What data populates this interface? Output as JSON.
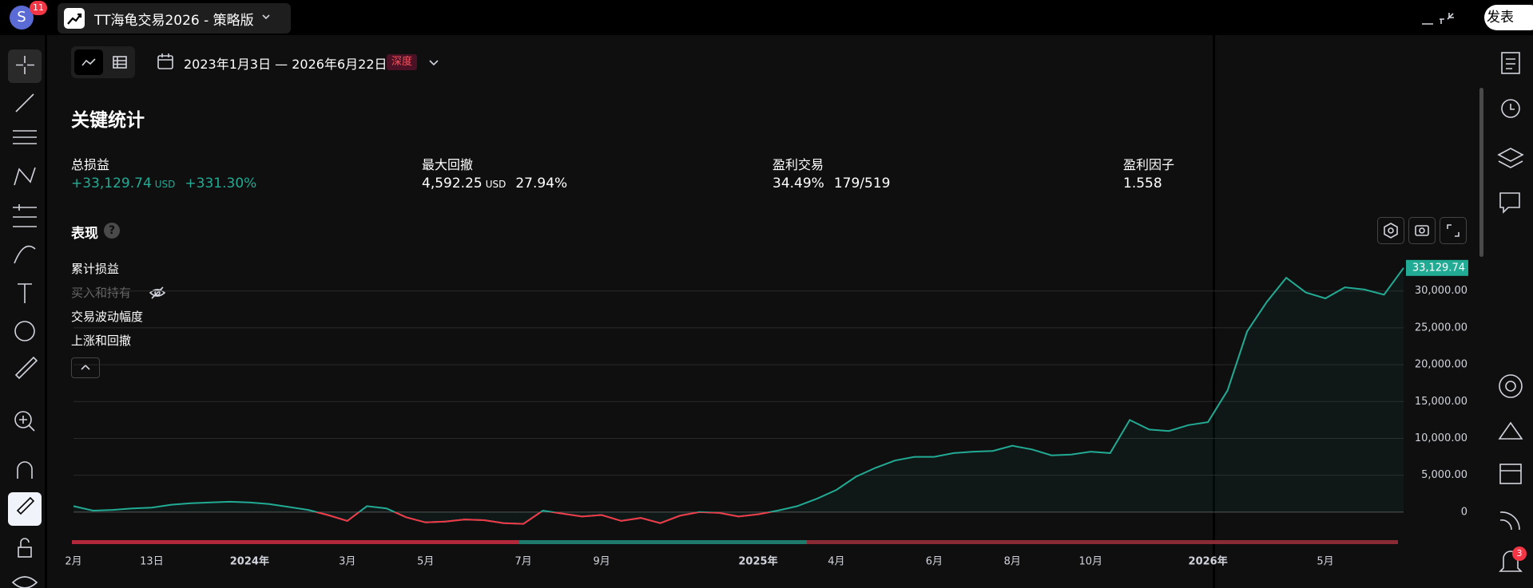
{
  "top_bar": {
    "avatar": "S",
    "notifications": "11",
    "tab_title": "TT海龟交易2026 - 策略版",
    "publish": "发表"
  },
  "toolbar": {
    "date_range": "2023年1月3日 — 2026年6月22日",
    "depth_badge": "深度"
  },
  "key_stats": {
    "title": "关键统计",
    "items": [
      {
        "label": "总损益",
        "value": "+33,129.74",
        "unit": "USD",
        "percent": "+331.30%"
      },
      {
        "label": "最大回撤",
        "value": "4,592.25",
        "unit": "USD",
        "percent": "27.94%"
      },
      {
        "label": "盈利交易",
        "value": "34.49%",
        "ratio": "179/519"
      },
      {
        "label": "盈利因子",
        "value": "1.558"
      }
    ]
  },
  "performance": {
    "title": "表现",
    "help": "?",
    "legend": [
      "累计损益",
      "买入和持有",
      "交易波动幅度",
      "上涨和回撤"
    ]
  },
  "alerts_badge": "3",
  "chart_data": {
    "type": "line",
    "color": "#22ab94",
    "negative_color": "#f23645",
    "categories": [
      "2月",
      null,
      null,
      null,
      "13日",
      null,
      null,
      null,
      null,
      "2024年",
      null,
      null,
      null,
      null,
      "3月",
      null,
      null,
      null,
      "5月",
      null,
      null,
      null,
      null,
      "7月",
      null,
      null,
      null,
      "9月",
      null,
      null,
      null,
      null,
      null,
      null,
      null,
      "2025年",
      null,
      null,
      null,
      "4月",
      null,
      null,
      null,
      null,
      "6月",
      null,
      null,
      null,
      "8月",
      null,
      null,
      null,
      "10月",
      null,
      null,
      null,
      null,
      null,
      "2026年",
      null,
      null,
      null,
      null,
      null,
      "5月",
      null,
      null,
      null,
      null
    ],
    "values": [
      800,
      200,
      300,
      500,
      600,
      1000,
      1200,
      1300,
      1400,
      1300,
      1100,
      700,
      300,
      -400,
      -1200,
      800,
      500,
      -700,
      -1400,
      -1300,
      -1000,
      -1100,
      -1500,
      -1600,
      200,
      -200,
      -600,
      -400,
      -1200,
      -800,
      -1500,
      -500,
      0,
      -100,
      -600,
      -300,
      200,
      800,
      1800,
      3000,
      4800,
      6000,
      7000,
      7500,
      7500,
      8000,
      8200,
      8300,
      9000,
      8500,
      7700,
      7800,
      8200,
      8000,
      12500,
      11200,
      11000,
      11800,
      12200,
      16500,
      24500,
      28500,
      31800,
      29800,
      29000,
      30500,
      30200,
      29500,
      33129.74
    ],
    "value_labels": [
      null,
      null,
      null,
      null,
      null,
      null,
      null,
      null,
      null,
      null,
      null,
      null,
      null,
      null,
      null,
      null,
      null,
      null,
      null,
      null,
      null,
      null,
      null,
      null,
      null,
      null,
      null,
      null,
      null,
      null,
      null,
      null,
      null,
      null,
      null,
      null,
      null,
      null,
      null,
      null,
      null,
      null,
      null,
      null,
      null,
      null,
      null,
      null,
      null,
      null,
      null,
      null,
      null,
      null,
      null,
      null,
      null,
      null,
      null,
      null,
      null,
      null,
      null,
      null,
      null,
      null,
      null,
      null,
      "33,129.74"
    ],
    "ylim": [
      -2400,
      34300
    ],
    "yticks": [
      0,
      {
        "value": 5000,
        "label": "5,000.00"
      },
      {
        "value": 10000,
        "label": "10,000.00"
      },
      {
        "value": 15000,
        "label": "15,000.00"
      },
      {
        "value": 20000,
        "label": "20,000.00"
      },
      {
        "value": 25000,
        "label": "25,000.00"
      },
      {
        "value": 30000,
        "label": "30,000.00"
      }
    ],
    "grid": true
  }
}
